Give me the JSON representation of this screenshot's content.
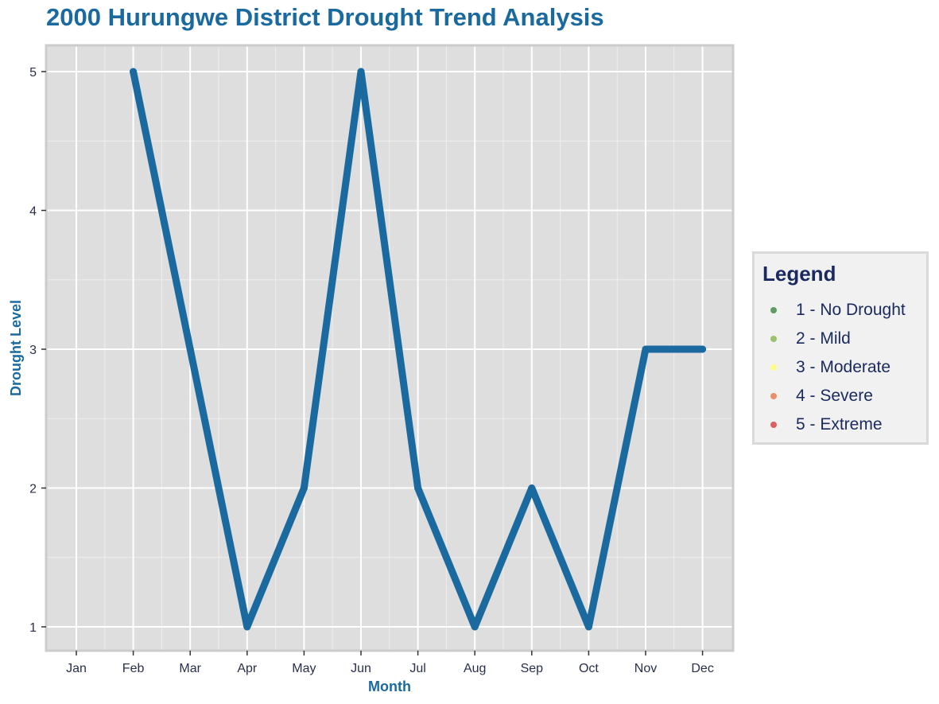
{
  "chart_data": {
    "type": "line",
    "title": "2000 Hurungwe District Drought Trend Analysis",
    "xlabel": "Month",
    "ylabel": "Drought Level",
    "categories": [
      "Jan",
      "Feb",
      "Mar",
      "Apr",
      "May",
      "Jun",
      "Jul",
      "Aug",
      "Sep",
      "Oct",
      "Nov",
      "Dec"
    ],
    "x": [
      "Feb",
      "Mar",
      "Apr",
      "May",
      "Jun",
      "Jul",
      "Aug",
      "Sep",
      "Oct",
      "Nov",
      "Dec"
    ],
    "values": [
      5,
      3,
      1,
      2,
      5,
      2,
      1,
      2,
      1,
      3,
      3
    ],
    "y_ticks": [
      1,
      2,
      3,
      4,
      5
    ],
    "ylim": [
      0.82,
      5.18
    ],
    "grid": true,
    "line_color": "#1a6aa0",
    "panel_background": "#dedede",
    "legend": {
      "title": "Legend",
      "position": "right",
      "items": [
        {
          "label": "1 - No Drought",
          "color": "#2e7d32"
        },
        {
          "label": "2 - Mild",
          "color": "#7cb342"
        },
        {
          "label": "3 - Moderate",
          "color": "#ffff66"
        },
        {
          "label": "4 - Severe",
          "color": "#e2703a"
        },
        {
          "label": "5 - Extreme",
          "color": "#d32f2f"
        }
      ]
    }
  }
}
